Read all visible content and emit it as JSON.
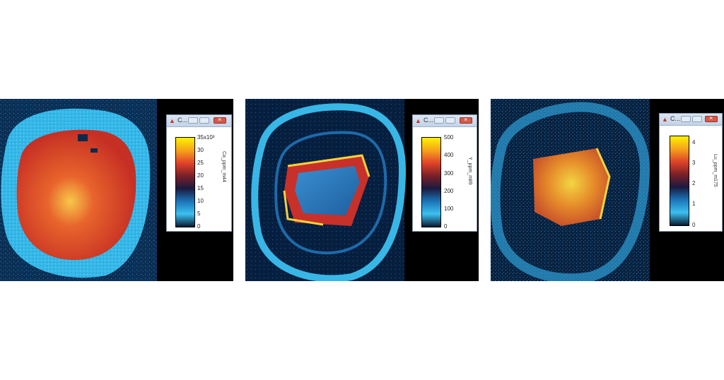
{
  "panels": [
    {
      "name": "Ca",
      "window_title": "C...",
      "axis_label": "Ca_ppm_m44",
      "tick_labels": [
        "35x10³",
        "30",
        "25",
        "20",
        "15",
        "10",
        "5",
        "0"
      ],
      "colors": {
        "core": "#d8402a",
        "hot": "#f6c43a",
        "rim": "#2fb7e8",
        "bg": "#0a2a4a"
      }
    },
    {
      "name": "Y",
      "window_title": "C...",
      "axis_label": "Y_ppm_m89",
      "tick_labels": [
        "500",
        "400",
        "300",
        "200",
        "100",
        "0"
      ],
      "colors": {
        "core": "#2d7fc6",
        "hot": "#f5d23a",
        "rim": "#3cb6e3",
        "bg": "#061f3d"
      }
    },
    {
      "name": "Lu",
      "window_title": "C...",
      "axis_label": "Lu_ppm_m175",
      "tick_labels": [
        "4",
        "3",
        "2",
        "1",
        "0"
      ],
      "colors": {
        "core": "#e0892a",
        "hot": "#f4d23f",
        "rim": "#2f9fd8",
        "bg": "#081f3b"
      }
    }
  ]
}
